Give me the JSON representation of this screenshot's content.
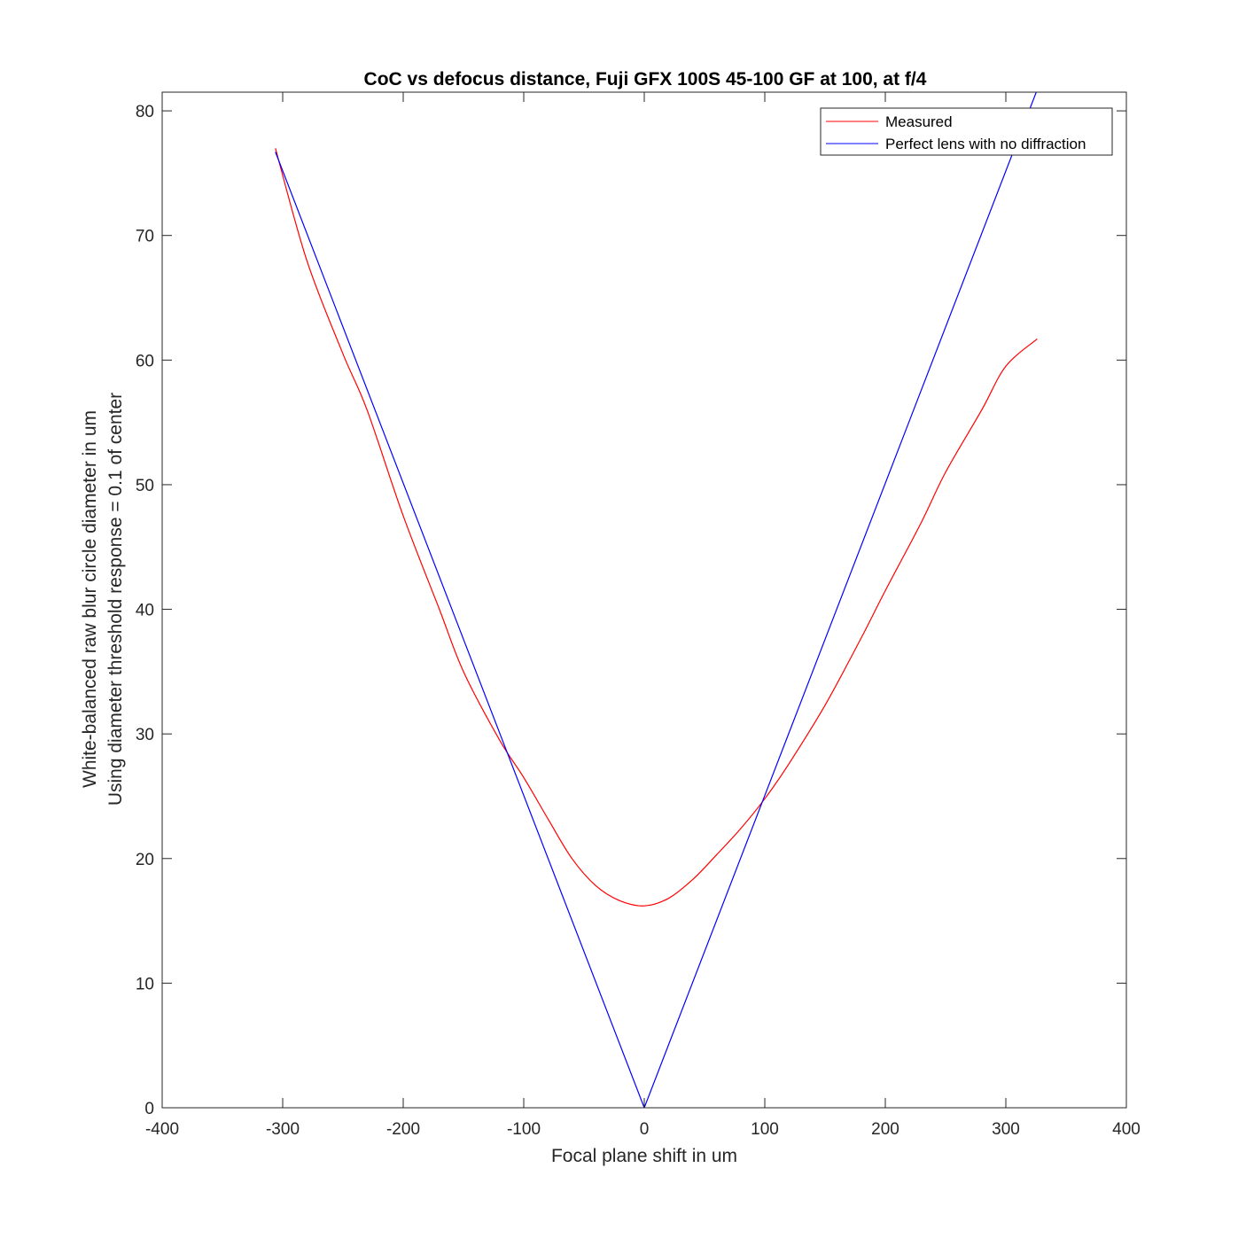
{
  "chart_data": {
    "type": "line",
    "title": "CoC vs defocus distance, Fuji GFX 100S 45-100 GF at 100, at f/4",
    "xlabel": "Focal plane shift in um",
    "ylabel": [
      "White-balanced raw blur circle diameter in um",
      "Using diameter threshold response = 0.1 of center"
    ],
    "xlim": [
      -400,
      400
    ],
    "ylim": [
      0,
      81.5
    ],
    "xticks": [
      -400,
      -300,
      -200,
      -100,
      0,
      100,
      200,
      300,
      400
    ],
    "yticks": [
      0,
      10,
      20,
      30,
      40,
      50,
      60,
      70,
      80
    ],
    "xtick_labels": [
      "-400",
      "-300",
      "-200",
      "-100",
      "0",
      "100",
      "200",
      "300",
      "400"
    ],
    "ytick_labels": [
      "0",
      "10",
      "20",
      "30",
      "40",
      "50",
      "60",
      "70",
      "80"
    ],
    "grid": false,
    "legend_position": "top-right",
    "series": [
      {
        "name": "Measured",
        "color": "#ff0000",
        "x": [
          -306,
          -280,
          -250,
          -230,
          -200,
          -170,
          -150,
          -120,
          -100,
          -80,
          -60,
          -40,
          -20,
          0,
          20,
          40,
          60,
          80,
          100,
          120,
          150,
          180,
          200,
          230,
          250,
          280,
          300,
          326
        ],
        "y": [
          77.0,
          68.0,
          60.5,
          56.0,
          47.5,
          40.0,
          35.0,
          29.5,
          26.5,
          23.2,
          20.0,
          17.8,
          16.6,
          16.2,
          16.8,
          18.3,
          20.3,
          22.4,
          24.8,
          27.6,
          32.3,
          37.7,
          41.5,
          47.0,
          51.0,
          56.0,
          59.5,
          61.7
        ]
      },
      {
        "name": "Perfect lens with no diffraction",
        "color": "#0000ff",
        "x": [
          -306,
          0,
          326
        ],
        "y": [
          76.7,
          0,
          81.7
        ]
      }
    ]
  }
}
